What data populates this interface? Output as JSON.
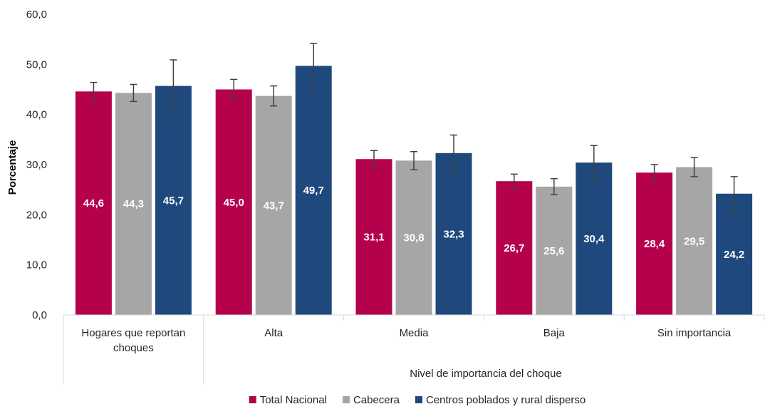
{
  "chart_data": {
    "type": "bar",
    "ylabel": "Porcentaje",
    "xlabel": "Nivel de importancia del choque",
    "ylim": [
      0,
      60
    ],
    "yticks": [
      "0,0",
      "10,0",
      "20,0",
      "30,0",
      "40,0",
      "50,0",
      "60,0"
    ],
    "categories": [
      [
        "Hogares que reportan",
        "choques"
      ],
      [
        "Alta"
      ],
      [
        "Media"
      ],
      [
        "Baja"
      ],
      [
        "Sin importancia"
      ]
    ],
    "grid": false,
    "legend_position": "bottom",
    "series": [
      {
        "name": "Total Nacional",
        "color": "#b5004b",
        "values": [
          44.6,
          45.0,
          31.1,
          26.7,
          28.4
        ],
        "labels": [
          "44,6",
          "45,0",
          "31,1",
          "26,7",
          "28,4"
        ],
        "err_low": [
          42.8,
          43.0,
          29.4,
          25.2,
          26.8
        ],
        "err_high": [
          46.4,
          47.0,
          32.8,
          28.1,
          30.0
        ]
      },
      {
        "name": "Cabecera",
        "color": "#a6a6a6",
        "values": [
          44.3,
          43.7,
          30.8,
          25.6,
          29.5
        ],
        "labels": [
          "44,3",
          "43,7",
          "30,8",
          "25,6",
          "29,5"
        ],
        "err_low": [
          42.6,
          41.7,
          29.0,
          24.0,
          27.6
        ],
        "err_high": [
          46.0,
          45.7,
          32.6,
          27.2,
          31.4
        ]
      },
      {
        "name": "Centros poblados y rural disperso",
        "color": "#1f497d",
        "values": [
          45.7,
          49.7,
          32.3,
          30.4,
          24.2
        ],
        "labels": [
          "45,7",
          "49,7",
          "32,3",
          "30,4",
          "24,2"
        ],
        "err_low": [
          40.5,
          45.2,
          28.7,
          27.0,
          20.8
        ],
        "err_high": [
          50.9,
          54.2,
          35.9,
          33.8,
          27.6
        ]
      }
    ]
  }
}
